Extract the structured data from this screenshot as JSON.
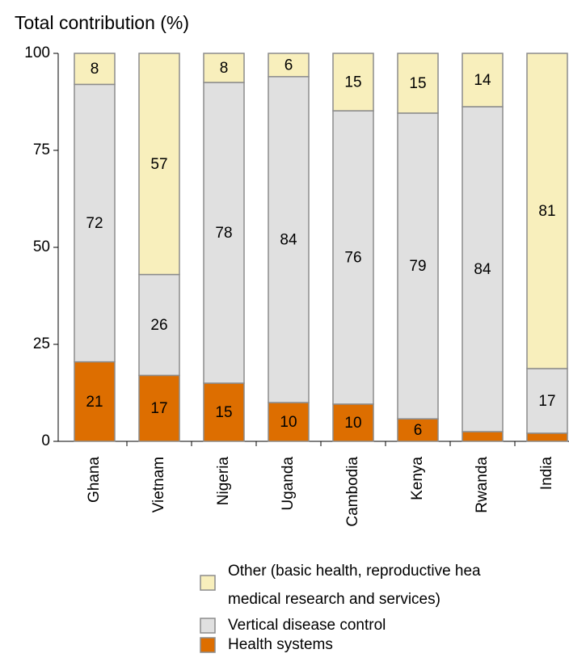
{
  "chart_data": {
    "type": "stacked_bar",
    "title": "Total contribution (%)",
    "categories": [
      "Ghana",
      "Vietnam",
      "Nigeria",
      "Uganda",
      "Cambodia",
      "Kenya",
      "Rwanda",
      "India"
    ],
    "series": [
      {
        "name": "Health systems",
        "color": "#dd6e00",
        "values": [
          20.5,
          17,
          15,
          10,
          9.6,
          5.8,
          2.5,
          2.1
        ],
        "value_labels": [
          "21",
          "17",
          "15",
          "10",
          "10",
          "6",
          null,
          null
        ]
      },
      {
        "name": "Vertical disease control",
        "color": "#e0e0e0",
        "values": [
          71.5,
          26,
          77.5,
          84,
          75.6,
          78.8,
          83.75,
          16.65
        ],
        "value_labels": [
          "72",
          "26",
          "78",
          "84",
          "76",
          "79",
          "84",
          "17"
        ]
      },
      {
        "name": "Other (basic health, reproductive hea\nmedical research and services)",
        "color": "#f8efbc",
        "values": [
          8,
          57,
          7.5,
          6,
          14.8,
          15.4,
          13.75,
          81.25
        ],
        "value_labels": [
          "8",
          "57",
          "8",
          "6",
          "15",
          "15",
          "14",
          "81"
        ]
      }
    ],
    "ylim": [
      0,
      100
    ],
    "yticks": [
      0,
      25,
      50,
      75,
      100
    ]
  }
}
